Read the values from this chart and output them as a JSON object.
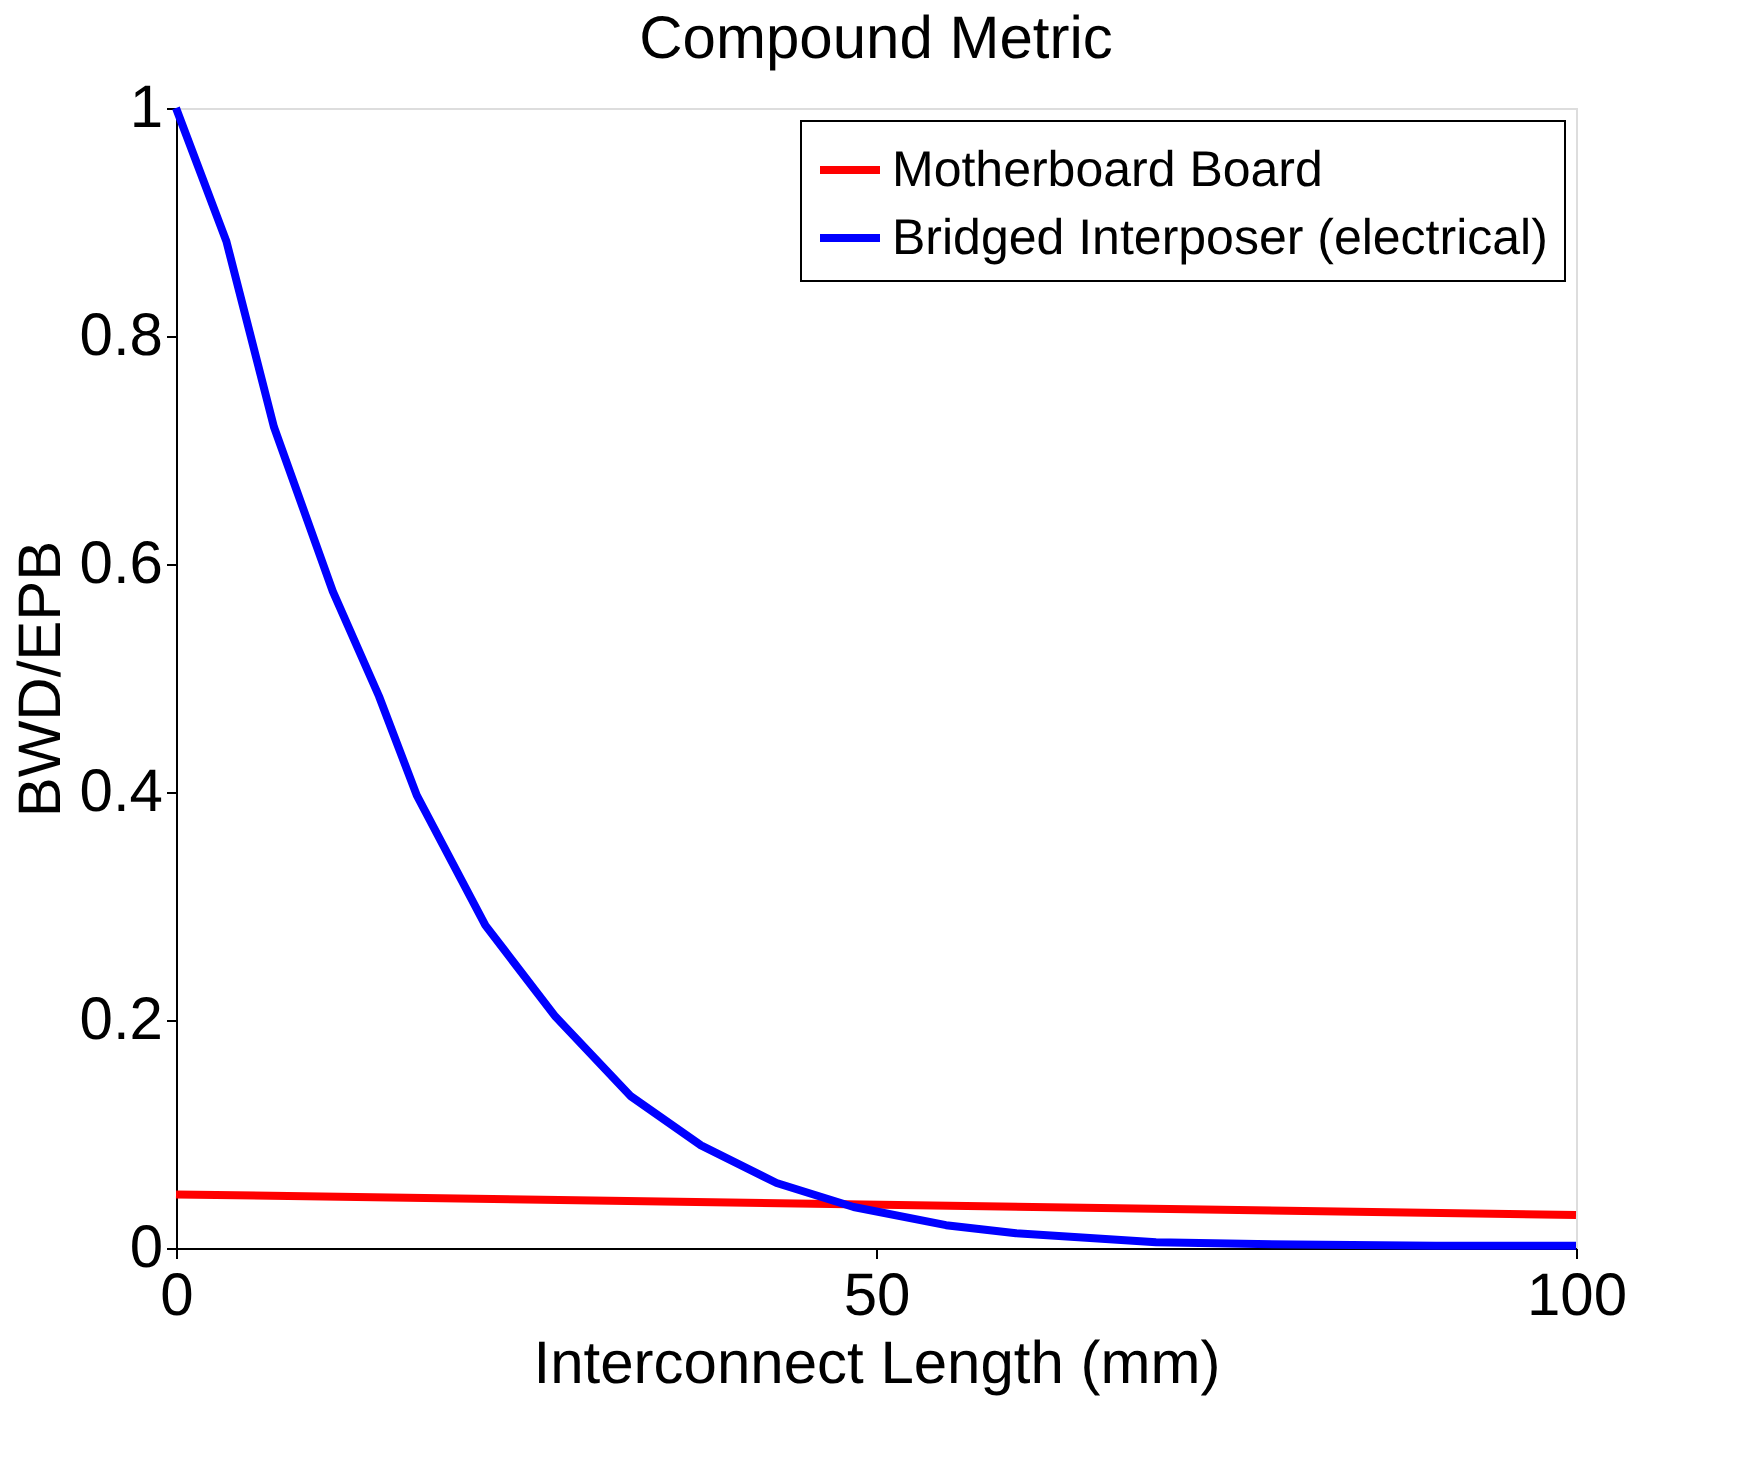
{
  "chart_data": {
    "type": "line",
    "title": "Compound Metric",
    "xlabel": "Interconnect Length (mm)",
    "ylabel": "BWD/EPB",
    "xlim": [
      0,
      100
    ],
    "xticks": [
      0,
      50,
      100
    ],
    "ylim": [
      0,
      1
    ],
    "yticks": [
      0,
      0.2,
      0.4,
      0.6,
      0.8,
      1
    ],
    "grid": false,
    "legend": "top right",
    "marker": "none",
    "line_style": "solid",
    "series": [
      {
        "name": "Motherboard Board",
        "color": "#ff0000",
        "x": [
          0,
          100
        ],
        "values": [
          0.047,
          0.029
        ]
      },
      {
        "name": "Bridged Interposer (electrical)",
        "color": "#0000ff",
        "x": [
          0,
          3.6,
          7,
          11.2,
          14.5,
          17.2,
          22.1,
          27.1,
          32.5,
          37.5,
          42.9,
          48.4,
          55,
          60,
          70,
          80,
          90,
          100
        ],
        "values": [
          1,
          0.883,
          0.72,
          0.576,
          0.484,
          0.397,
          0.283,
          0.203,
          0.133,
          0.09,
          0.057,
          0.036,
          0.02,
          0.013,
          0.005,
          0.003,
          0.002,
          0.002
        ]
      }
    ]
  }
}
